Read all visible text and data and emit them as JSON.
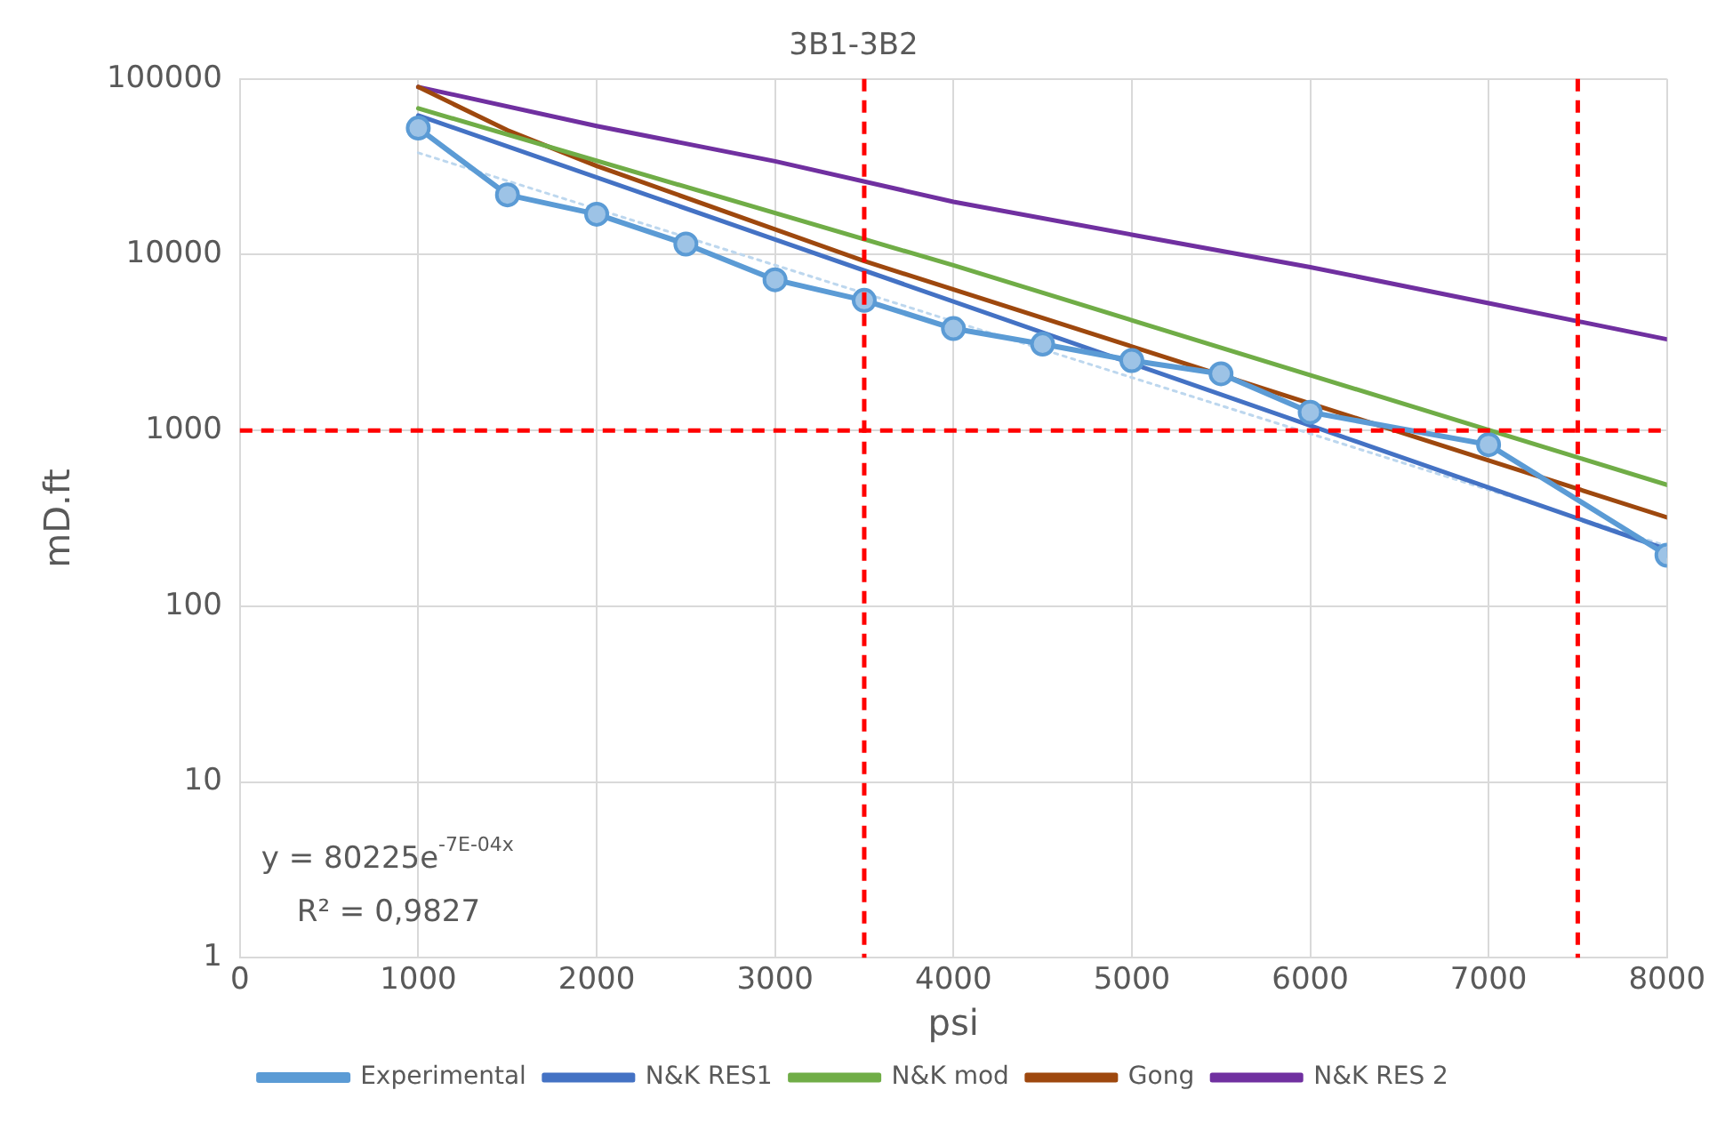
{
  "chart_data": {
    "type": "line",
    "title": "3B1-3B2",
    "xlabel": "psi",
    "ylabel": "mD.ft",
    "log": "y",
    "xlim": [
      0,
      8000
    ],
    "xticks": [
      0,
      1000,
      2000,
      3000,
      4000,
      5000,
      6000,
      7000,
      8000
    ],
    "ylim": [
      1,
      100000
    ],
    "yticks": [
      1,
      10,
      100,
      1000,
      10000,
      100000
    ],
    "grid": true,
    "legend": "bottom",
    "series": [
      {
        "name": "Experimental",
        "color": "#5b9bd5",
        "marker": "circle",
        "x": [
          1000,
          1500,
          2000,
          2500,
          3000,
          3500,
          4000,
          4500,
          5000,
          5500,
          6000,
          7000,
          8000
        ],
        "values": [
          52500,
          21900,
          17000,
          11500,
          7200,
          5500,
          3800,
          3100,
          2500,
          2100,
          1270,
          830,
          195
        ]
      },
      {
        "name": "N&K RES1",
        "color": "#4472c4",
        "x": [
          1000,
          8000
        ],
        "values": [
          62000,
          210
        ]
      },
      {
        "name": "N&K mod",
        "color": "#70ad47",
        "x": [
          1000,
          4000,
          8000
        ],
        "values": [
          68000,
          8700,
          490
        ]
      },
      {
        "name": "Gong",
        "color": "#9e480e",
        "x": [
          1000,
          1500,
          2000,
          3500,
          8000
        ],
        "values": [
          90000,
          51000,
          32000,
          9200,
          320
        ]
      },
      {
        "name": "N&K RES 2",
        "color": "#7030a0",
        "x": [
          1000,
          2000,
          3000,
          4000,
          5000,
          6000,
          7000,
          8000
        ],
        "values": [
          90000,
          54000,
          34000,
          20000,
          13000,
          8500,
          5300,
          3300
        ]
      },
      {
        "type": "line",
        "color": "#bdd7ee",
        "line_style": "dotted",
        "x": [
          1000,
          8000
        ],
        "values": [
          38000,
          220
        ]
      }
    ],
    "ref_lines": [
      {
        "axis": "y",
        "value": 1000,
        "color": "#ff0000",
        "line_style": "dashed"
      },
      {
        "axis": "x",
        "value": 3500,
        "color": "#ff0000",
        "line_style": "dashed"
      },
      {
        "axis": "x",
        "value": 7500,
        "color": "#ff0000",
        "line_style": "dashed"
      }
    ],
    "annotations": [
      "y = 80225e$^{-7E-04x}$",
      "R² = 0,9827"
    ]
  }
}
